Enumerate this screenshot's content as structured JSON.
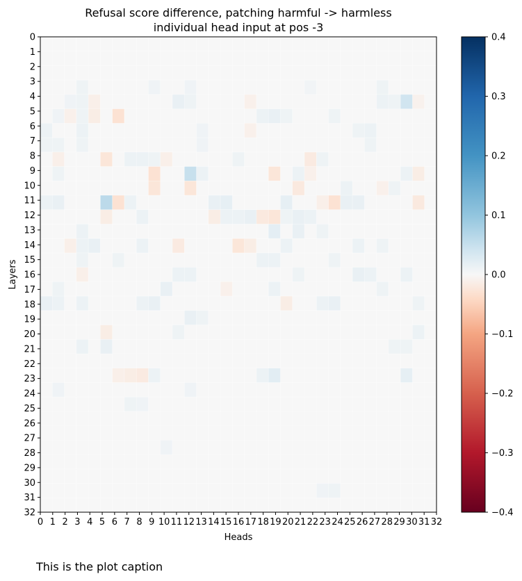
{
  "chart_data": {
    "type": "heatmap",
    "title_lines": [
      "Refusal score difference, patching harmful -> harmless",
      "individual head input at pos -3"
    ],
    "xlabel": "Heads",
    "ylabel": "Layers",
    "x_ticks": [
      "0",
      "1",
      "2",
      "3",
      "4",
      "5",
      "6",
      "7",
      "8",
      "9",
      "10",
      "11",
      "12",
      "13",
      "14",
      "15",
      "16",
      "17",
      "18",
      "19",
      "20",
      "21",
      "22",
      "23",
      "24",
      "25",
      "26",
      "27",
      "28",
      "29",
      "30",
      "31",
      "32"
    ],
    "y_ticks": [
      "0",
      "1",
      "2",
      "3",
      "4",
      "5",
      "6",
      "7",
      "8",
      "9",
      "10",
      "11",
      "12",
      "13",
      "14",
      "15",
      "16",
      "17",
      "18",
      "19",
      "20",
      "21",
      "22",
      "23",
      "24",
      "25",
      "26",
      "27",
      "28",
      "29",
      "30",
      "31",
      "32"
    ],
    "n_rows": 33,
    "n_cols": 33,
    "background_value": 0.0,
    "colormap": "RdBu",
    "vmin": -0.4,
    "vmax": 0.4,
    "colorbar_ticks": [
      "0.4",
      "0.3",
      "0.2",
      "0.1",
      "0.0",
      "−0.1",
      "−0.2",
      "−0.3",
      "−0.4"
    ],
    "cells": [
      [
        3,
        3,
        0.01
      ],
      [
        3,
        9,
        0.008
      ],
      [
        3,
        12,
        0.008
      ],
      [
        3,
        22,
        0.006
      ],
      [
        3,
        28,
        0.01
      ],
      [
        4,
        2,
        0.008
      ],
      [
        4,
        3,
        0.01
      ],
      [
        4,
        4,
        -0.012
      ],
      [
        4,
        11,
        0.015
      ],
      [
        4,
        12,
        0.01
      ],
      [
        4,
        17,
        -0.01
      ],
      [
        4,
        28,
        0.012
      ],
      [
        4,
        29,
        0.01
      ],
      [
        4,
        30,
        0.04
      ],
      [
        4,
        31,
        -0.008
      ],
      [
        5,
        1,
        0.008
      ],
      [
        5,
        2,
        -0.01
      ],
      [
        5,
        3,
        0.01
      ],
      [
        5,
        4,
        -0.015
      ],
      [
        5,
        6,
        -0.03
      ],
      [
        5,
        18,
        0.012
      ],
      [
        5,
        19,
        0.015
      ],
      [
        5,
        20,
        0.01
      ],
      [
        5,
        24,
        0.01
      ],
      [
        6,
        0,
        0.012
      ],
      [
        6,
        3,
        0.012
      ],
      [
        6,
        13,
        0.008
      ],
      [
        6,
        17,
        -0.01
      ],
      [
        6,
        26,
        0.01
      ],
      [
        6,
        27,
        0.012
      ],
      [
        7,
        0,
        0.01
      ],
      [
        7,
        1,
        0.01
      ],
      [
        7,
        3,
        0.01
      ],
      [
        7,
        13,
        0.008
      ],
      [
        7,
        27,
        0.01
      ],
      [
        8,
        1,
        -0.012
      ],
      [
        8,
        5,
        -0.025
      ],
      [
        8,
        7,
        0.012
      ],
      [
        8,
        8,
        0.012
      ],
      [
        8,
        9,
        0.01
      ],
      [
        8,
        10,
        -0.012
      ],
      [
        8,
        16,
        0.01
      ],
      [
        8,
        22,
        -0.018
      ],
      [
        8,
        23,
        0.01
      ],
      [
        9,
        1,
        0.01
      ],
      [
        9,
        9,
        -0.03
      ],
      [
        9,
        12,
        0.05
      ],
      [
        9,
        13,
        0.012
      ],
      [
        9,
        19,
        -0.025
      ],
      [
        9,
        21,
        0.012
      ],
      [
        9,
        22,
        -0.01
      ],
      [
        9,
        30,
        0.012
      ],
      [
        9,
        31,
        -0.015
      ],
      [
        10,
        9,
        -0.025
      ],
      [
        10,
        12,
        -0.025
      ],
      [
        10,
        21,
        -0.02
      ],
      [
        10,
        25,
        0.012
      ],
      [
        10,
        28,
        -0.01
      ],
      [
        10,
        29,
        0.01
      ],
      [
        11,
        0,
        0.012
      ],
      [
        11,
        1,
        0.015
      ],
      [
        11,
        5,
        0.06
      ],
      [
        11,
        6,
        -0.03
      ],
      [
        11,
        7,
        0.012
      ],
      [
        11,
        14,
        0.015
      ],
      [
        11,
        15,
        0.018
      ],
      [
        11,
        20,
        0.018
      ],
      [
        11,
        23,
        -0.012
      ],
      [
        11,
        24,
        -0.03
      ],
      [
        11,
        25,
        0.015
      ],
      [
        11,
        26,
        0.015
      ],
      [
        11,
        31,
        -0.02
      ],
      [
        12,
        5,
        -0.015
      ],
      [
        12,
        8,
        0.012
      ],
      [
        12,
        14,
        -0.015
      ],
      [
        12,
        15,
        0.012
      ],
      [
        12,
        16,
        0.012
      ],
      [
        12,
        17,
        0.015
      ],
      [
        12,
        18,
        -0.02
      ],
      [
        12,
        19,
        -0.025
      ],
      [
        12,
        20,
        0.01
      ],
      [
        12,
        21,
        0.015
      ],
      [
        12,
        22,
        0.012
      ],
      [
        13,
        3,
        0.012
      ],
      [
        13,
        19,
        0.02
      ],
      [
        13,
        21,
        0.015
      ],
      [
        13,
        23,
        0.01
      ],
      [
        14,
        2,
        -0.012
      ],
      [
        14,
        3,
        0.012
      ],
      [
        14,
        4,
        0.015
      ],
      [
        14,
        8,
        0.012
      ],
      [
        14,
        11,
        -0.018
      ],
      [
        14,
        16,
        -0.025
      ],
      [
        14,
        17,
        -0.015
      ],
      [
        14,
        20,
        0.012
      ],
      [
        14,
        26,
        0.012
      ],
      [
        14,
        28,
        0.01
      ],
      [
        15,
        3,
        0.01
      ],
      [
        15,
        6,
        0.01
      ],
      [
        15,
        18,
        0.012
      ],
      [
        15,
        19,
        0.012
      ],
      [
        15,
        24,
        0.01
      ],
      [
        16,
        3,
        -0.012
      ],
      [
        16,
        11,
        0.012
      ],
      [
        16,
        12,
        0.012
      ],
      [
        16,
        21,
        0.01
      ],
      [
        16,
        26,
        0.015
      ],
      [
        16,
        27,
        0.012
      ],
      [
        16,
        30,
        0.012
      ],
      [
        17,
        1,
        0.01
      ],
      [
        17,
        10,
        0.015
      ],
      [
        17,
        15,
        -0.01
      ],
      [
        17,
        19,
        0.012
      ],
      [
        17,
        28,
        0.01
      ],
      [
        18,
        0,
        0.015
      ],
      [
        18,
        1,
        0.012
      ],
      [
        18,
        3,
        0.012
      ],
      [
        18,
        8,
        0.012
      ],
      [
        18,
        9,
        0.015
      ],
      [
        18,
        20,
        -0.015
      ],
      [
        18,
        23,
        0.012
      ],
      [
        18,
        24,
        0.015
      ],
      [
        18,
        31,
        0.01
      ],
      [
        19,
        12,
        0.015
      ],
      [
        19,
        13,
        0.01
      ],
      [
        20,
        5,
        -0.015
      ],
      [
        20,
        11,
        0.01
      ],
      [
        20,
        31,
        0.012
      ],
      [
        21,
        3,
        0.012
      ],
      [
        21,
        5,
        0.015
      ],
      [
        21,
        29,
        0.01
      ],
      [
        21,
        30,
        0.01
      ],
      [
        23,
        6,
        -0.012
      ],
      [
        23,
        7,
        -0.015
      ],
      [
        23,
        8,
        -0.018
      ],
      [
        23,
        9,
        0.012
      ],
      [
        23,
        18,
        0.012
      ],
      [
        23,
        19,
        0.022
      ],
      [
        23,
        30,
        0.018
      ],
      [
        24,
        1,
        0.008
      ],
      [
        24,
        12,
        0.008
      ],
      [
        25,
        7,
        0.01
      ],
      [
        25,
        8,
        0.008
      ],
      [
        28,
        10,
        0.008
      ],
      [
        31,
        23,
        0.008
      ],
      [
        31,
        24,
        0.01
      ]
    ]
  },
  "caption": "This is the plot caption"
}
